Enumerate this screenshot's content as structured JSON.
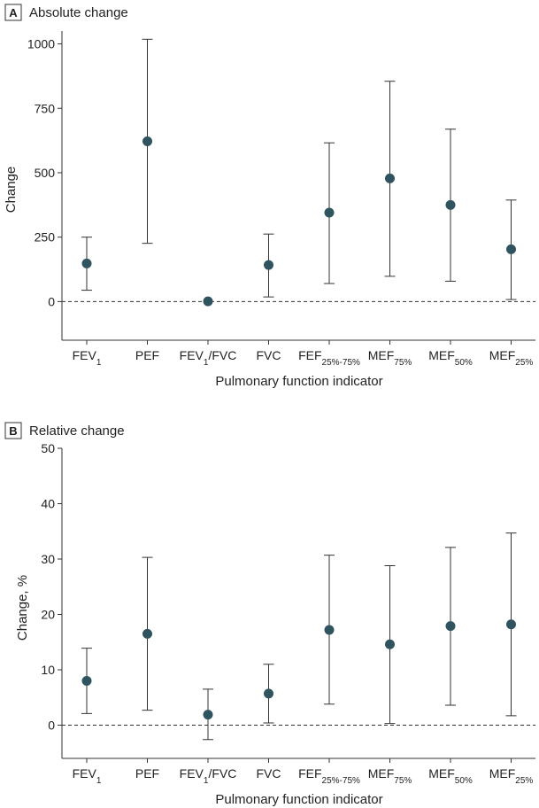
{
  "chart_data": [
    {
      "type": "scatter",
      "panel_letter": "A",
      "title": "Absolute change",
      "xlabel": "Pulmonary function indicator",
      "ylabel": "Change",
      "ylim": [
        -150,
        1050
      ],
      "yticks": [
        0,
        250,
        500,
        750,
        1000
      ],
      "categories": [
        {
          "base": "FEV",
          "sub": "1",
          "suffix": ""
        },
        {
          "base": "PEF",
          "sub": "",
          "suffix": ""
        },
        {
          "base": "FEV",
          "sub": "1",
          "suffix": "/FVC"
        },
        {
          "base": "FVC",
          "sub": "",
          "suffix": ""
        },
        {
          "base": "FEF",
          "sub": "25%-75%",
          "suffix": ""
        },
        {
          "base": "MEF",
          "sub": "75%",
          "suffix": ""
        },
        {
          "base": "MEF",
          "sub": "50%",
          "suffix": ""
        },
        {
          "base": "MEF",
          "sub": "25%",
          "suffix": ""
        }
      ],
      "values": [
        148,
        622,
        1,
        142,
        345,
        478,
        375,
        203
      ],
      "lower": [
        44,
        226,
        0,
        18,
        70,
        98,
        79,
        8
      ],
      "upper": [
        250,
        1018,
        2,
        262,
        616,
        855,
        669,
        394
      ],
      "reference_line": 0
    },
    {
      "type": "scatter",
      "panel_letter": "B",
      "title": "Relative change",
      "xlabel": "Pulmonary function indicator",
      "ylabel": "Change, %",
      "ylim": [
        -6,
        50
      ],
      "yticks": [
        0,
        10,
        20,
        30,
        40,
        50
      ],
      "categories": [
        {
          "base": "FEV",
          "sub": "1",
          "suffix": ""
        },
        {
          "base": "PEF",
          "sub": "",
          "suffix": ""
        },
        {
          "base": "FEV",
          "sub": "1",
          "suffix": "/FVC"
        },
        {
          "base": "FVC",
          "sub": "",
          "suffix": ""
        },
        {
          "base": "FEF",
          "sub": "25%-75%",
          "suffix": ""
        },
        {
          "base": "MEF",
          "sub": "75%",
          "suffix": ""
        },
        {
          "base": "MEF",
          "sub": "50%",
          "suffix": ""
        },
        {
          "base": "MEF",
          "sub": "25%",
          "suffix": ""
        }
      ],
      "values": [
        8.0,
        16.5,
        1.9,
        5.7,
        17.2,
        14.6,
        17.9,
        18.2
      ],
      "lower": [
        2.1,
        2.7,
        -2.6,
        0.4,
        3.8,
        0.3,
        3.6,
        1.7
      ],
      "upper": [
        13.9,
        30.3,
        6.5,
        11.0,
        30.7,
        28.8,
        32.1,
        34.7
      ],
      "reference_line": 0
    }
  ]
}
